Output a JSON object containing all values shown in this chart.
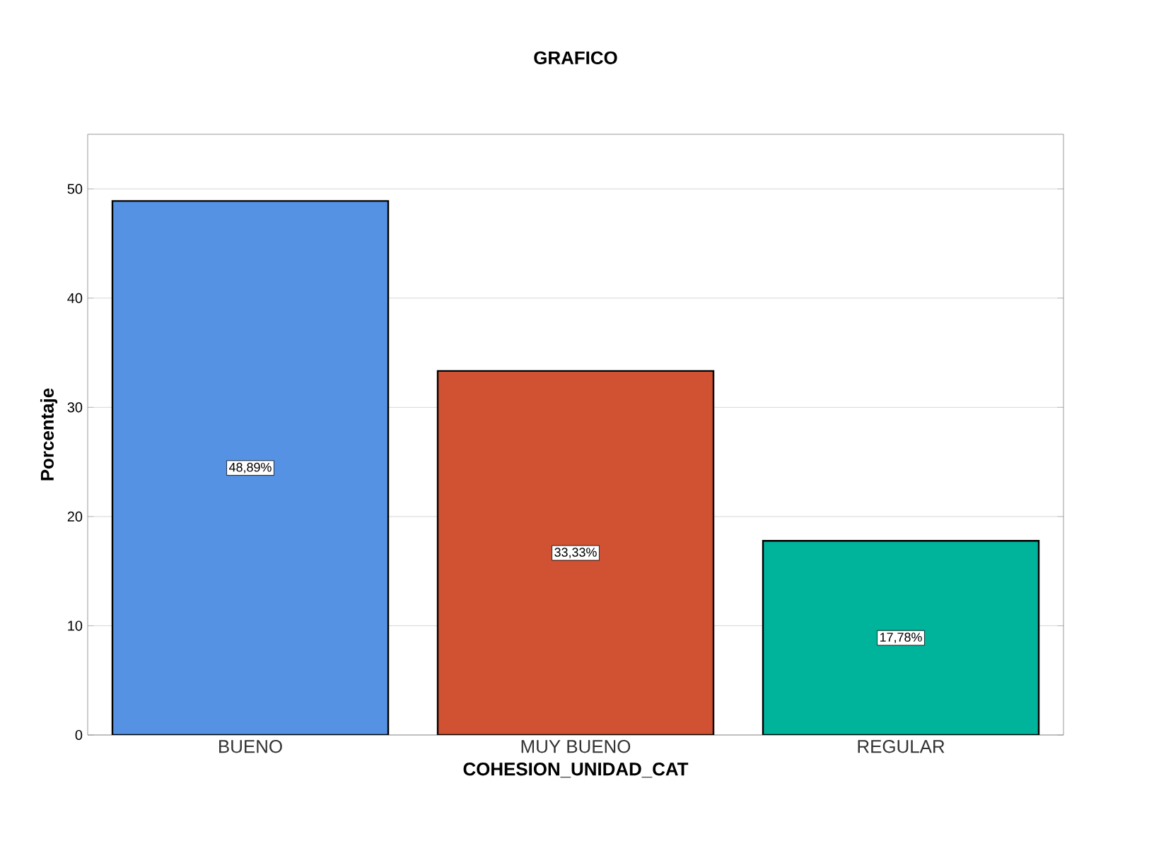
{
  "chart_data": {
    "type": "bar",
    "title": "GRAFICO",
    "xlabel": "COHESION_UNIDAD_CAT",
    "ylabel": "Porcentaje",
    "categories": [
      "BUENO",
      "MUY BUENO",
      "REGULAR"
    ],
    "values": [
      48.89,
      33.33,
      17.78
    ],
    "colors": [
      "#5592e4",
      "#d05232",
      "#00b39b"
    ],
    "value_labels": [
      "48,89%",
      "33,33%",
      "17,78%"
    ],
    "ylim": [
      0,
      55
    ],
    "yticks": [
      0,
      10,
      20,
      30,
      40,
      50
    ],
    "grid": "y"
  }
}
